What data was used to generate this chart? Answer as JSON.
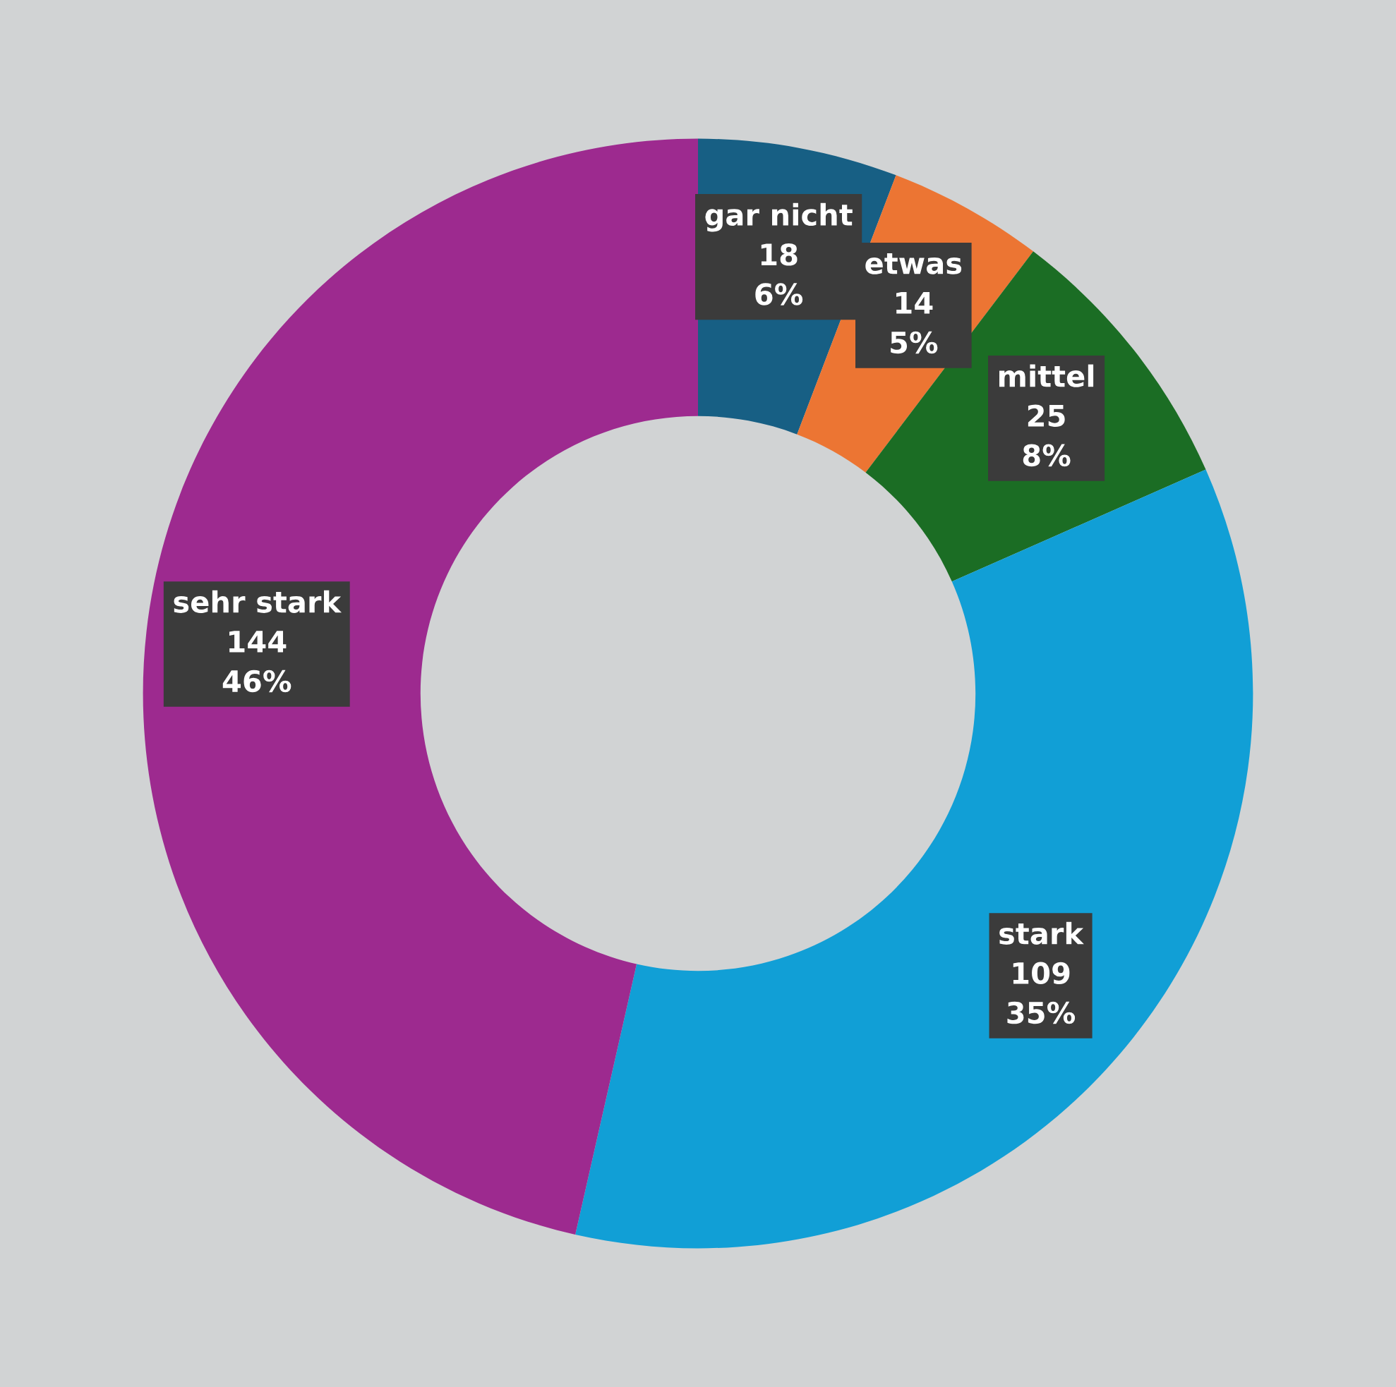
{
  "chart_data": {
    "type": "donut",
    "categories": [
      "gar nicht",
      "etwas",
      "mittel",
      "stark",
      "sehr stark"
    ],
    "values": [
      18,
      14,
      25,
      109,
      144
    ],
    "value_labels": [
      "18\n6%",
      "14\n5%",
      "25\n8%",
      "109\n35%",
      "144\n46%"
    ],
    "colors": [
      "#175f84",
      "#ec7533",
      "#1b6d24",
      "#119fd6",
      "#9d2a8f"
    ],
    "legend": false
  }
}
